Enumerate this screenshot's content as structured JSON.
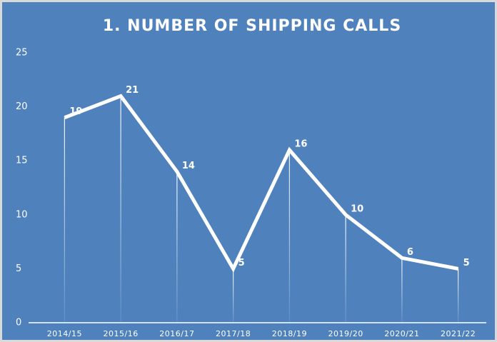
{
  "chart_data": {
    "type": "line",
    "title": "1. NUMBER OF SHIPPING CALLS",
    "categories": [
      "2014/15",
      "2015/16",
      "2016/17",
      "2017/18",
      "2018/19",
      "2019/20",
      "2020/21",
      "2021/22"
    ],
    "values": [
      19,
      21,
      14,
      5,
      16,
      10,
      6,
      5
    ],
    "color": "#ffffff",
    "ylim": [
      0,
      25
    ],
    "yticks": [
      0,
      5,
      10,
      15,
      20,
      25
    ],
    "grid": false
  }
}
